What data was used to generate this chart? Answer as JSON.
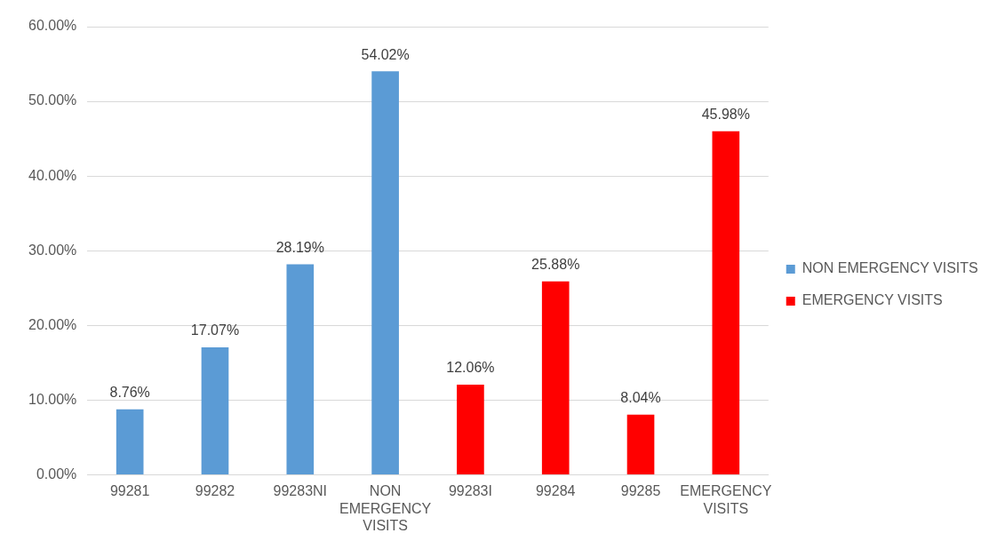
{
  "chart_data": {
    "type": "bar",
    "categories": [
      "99281",
      "99282",
      "99283NI",
      "NON EMERGENCY VISITS",
      "99283I",
      "99284",
      "99285",
      "EMERGENCY VISITS"
    ],
    "series": [
      {
        "name": "NON EMERGENCY VISITS",
        "color": "#5b9bd5",
        "values": [
          8.76,
          17.07,
          28.19,
          54.02,
          null,
          null,
          null,
          null
        ],
        "value_labels": [
          "8.76%",
          "17.07%",
          "28.19%",
          "54.02%",
          null,
          null,
          null,
          null
        ]
      },
      {
        "name": "EMERGENCY VISITS",
        "color": "#ff0000",
        "values": [
          null,
          null,
          null,
          null,
          12.06,
          25.88,
          8.04,
          45.98
        ],
        "value_labels": [
          null,
          null,
          null,
          null,
          "12.06%",
          "25.88%",
          "8.04%",
          "45.98%"
        ]
      }
    ],
    "ylim": [
      0,
      60
    ],
    "yticks": [
      {
        "value": 0,
        "label": "0.00%"
      },
      {
        "value": 10,
        "label": "10.00%"
      },
      {
        "value": 20,
        "label": "20.00%"
      },
      {
        "value": 30,
        "label": "30.00%"
      },
      {
        "value": 40,
        "label": "40.00%"
      },
      {
        "value": 50,
        "label": "50.00%"
      },
      {
        "value": 60,
        "label": "60.00%"
      }
    ],
    "grid": "y",
    "legend": "right"
  }
}
